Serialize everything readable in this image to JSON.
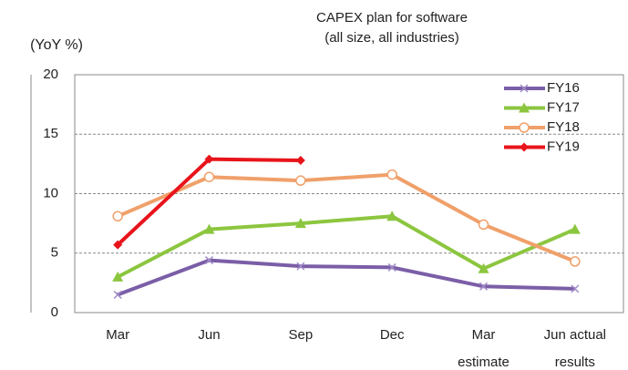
{
  "chart_data": {
    "type": "line",
    "title": [
      "CAPEX plan for software",
      "(all size, all industries)"
    ],
    "y_label": "(YoY %)",
    "categories": [
      [
        "Mar"
      ],
      [
        "Jun"
      ],
      [
        "Sep"
      ],
      [
        "Dec"
      ],
      [
        "Mar",
        "estimate"
      ],
      [
        "Jun actual",
        "results"
      ]
    ],
    "ylim": [
      0,
      20
    ],
    "yticks": [
      0,
      5,
      10,
      15,
      20
    ],
    "grid": true,
    "legend": "upper right",
    "series": [
      {
        "name": "FY16",
        "color": "#7b5ea7",
        "marker": "x",
        "values": [
          1.5,
          4.4,
          3.9,
          3.8,
          2.2,
          2.0
        ]
      },
      {
        "name": "FY17",
        "color": "#8cc63f",
        "marker": "triangle",
        "values": [
          3.0,
          7.0,
          7.5,
          8.1,
          3.7,
          7.0
        ]
      },
      {
        "name": "FY18",
        "color": "#f0a06a",
        "marker": "circle",
        "values": [
          8.1,
          11.4,
          11.1,
          11.6,
          7.4,
          4.3
        ]
      },
      {
        "name": "FY19",
        "color": "#e8141b",
        "marker": "diamond",
        "values": [
          5.7,
          12.9,
          12.8,
          null,
          null,
          null
        ]
      }
    ]
  }
}
